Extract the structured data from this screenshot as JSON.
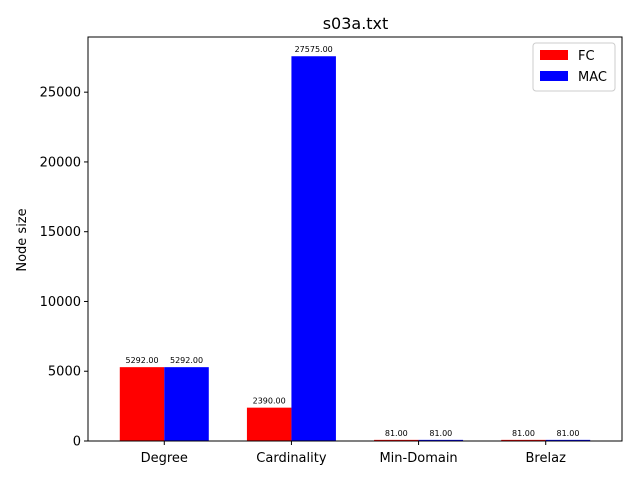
{
  "chart_data": {
    "type": "bar",
    "title": "s03a.txt",
    "xlabel": "",
    "ylabel": "Node size",
    "categories": [
      "Degree",
      "Cardinality",
      "Min-Domain",
      "Brelaz"
    ],
    "series": [
      {
        "name": "FC",
        "values": [
          5292.0,
          2390.0,
          81.0,
          81.0
        ],
        "color": "#ff0000",
        "labels": [
          "5292.00",
          "2390.00",
          "81.00",
          "81.00"
        ]
      },
      {
        "name": "MAC",
        "values": [
          5292.0,
          27575.0,
          81.0,
          81.0
        ],
        "color": "#0000ff",
        "labels": [
          "5292.00",
          "27575.00",
          "81.00",
          "81.00"
        ]
      }
    ],
    "ylim": [
      0,
      28954
    ],
    "yticks": [
      0,
      5000,
      10000,
      15000,
      20000,
      25000
    ],
    "legend_position": "top-right",
    "grid": false
  }
}
